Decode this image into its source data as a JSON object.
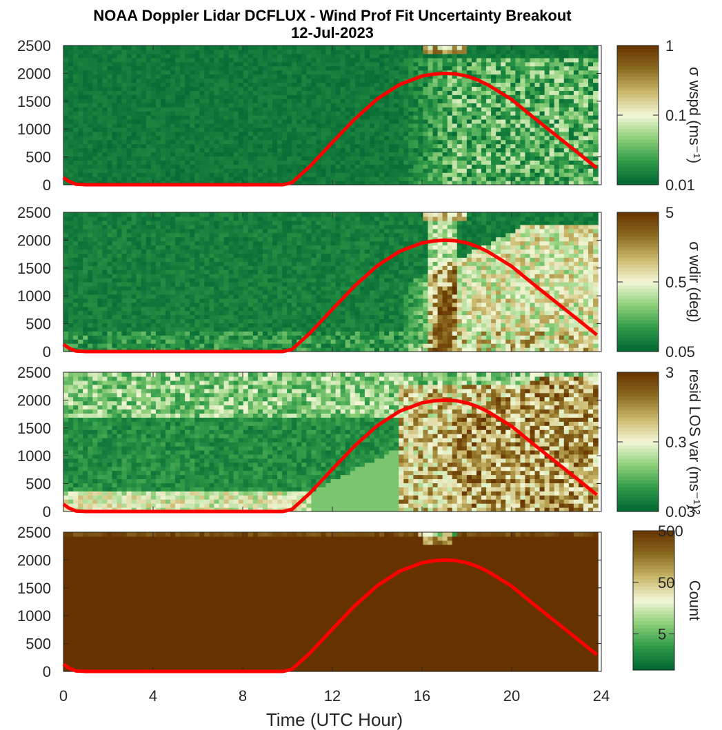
{
  "chart_data": {
    "type": "heatmap",
    "title": "NOAA Doppler Lidar DCFLUX - Wind Prof Fit Uncertainty Breakout",
    "subtitle": "12-Jul-2023",
    "xlabel": "Time (UTC Hour)",
    "xlim": [
      0,
      24
    ],
    "xticks": [
      "0",
      "4",
      "8",
      "12",
      "16",
      "20",
      "24"
    ],
    "ylim": [
      0,
      2500
    ],
    "yticks": [
      "0",
      "500",
      "1000",
      "1500",
      "2000",
      "2500"
    ],
    "overlay_line": {
      "color": "#ff0000",
      "x": [
        0,
        0.25,
        0.55,
        1,
        2,
        4,
        6,
        8,
        9.8,
        10.2,
        11,
        12,
        13,
        14,
        15,
        16,
        16.5,
        17,
        17.5,
        18,
        18.5,
        19,
        20,
        21,
        22,
        23,
        23.8
      ],
      "y": [
        130,
        60,
        10,
        0,
        0,
        0,
        0,
        0,
        0,
        40,
        330,
        760,
        1180,
        1540,
        1800,
        1950,
        1985,
        2000,
        1990,
        1950,
        1880,
        1780,
        1530,
        1200,
        880,
        560,
        300
      ]
    },
    "panels": [
      {
        "name": "wspd",
        "colorbar_label": "σ wspd (ms⁻¹)",
        "colorbar_ticks": [
          "1",
          "0.1",
          "0.01"
        ],
        "colorbar_scale": "log",
        "clim": [
          0.01,
          1
        ],
        "background_level": 0.01,
        "activity": "low"
      },
      {
        "name": "wdir",
        "colorbar_label": "σ wdir (deg)",
        "colorbar_ticks": [
          "5",
          "0.5",
          "0.05"
        ],
        "colorbar_scale": "log",
        "clim": [
          0.05,
          5
        ],
        "background_level": 0.05,
        "activity": "medium"
      },
      {
        "name": "resid",
        "colorbar_label": "resid LOS var (ms⁻¹)²",
        "colorbar_ticks": [
          "3",
          "0.3",
          "0.03"
        ],
        "colorbar_scale": "log",
        "clim": [
          0.03,
          3
        ],
        "background_level": 0.03,
        "activity": "high"
      },
      {
        "name": "count",
        "colorbar_label": "Count",
        "colorbar_ticks": [
          "500",
          "50",
          "5"
        ],
        "colorbar_scale": "log",
        "clim": [
          1,
          500
        ],
        "background_level": 500,
        "activity": "count"
      }
    ],
    "colormap": [
      "#006633",
      "#2e9a47",
      "#8fd07a",
      "#f3f7d7",
      "#c9b76a",
      "#8a6a1f",
      "#663300"
    ]
  }
}
